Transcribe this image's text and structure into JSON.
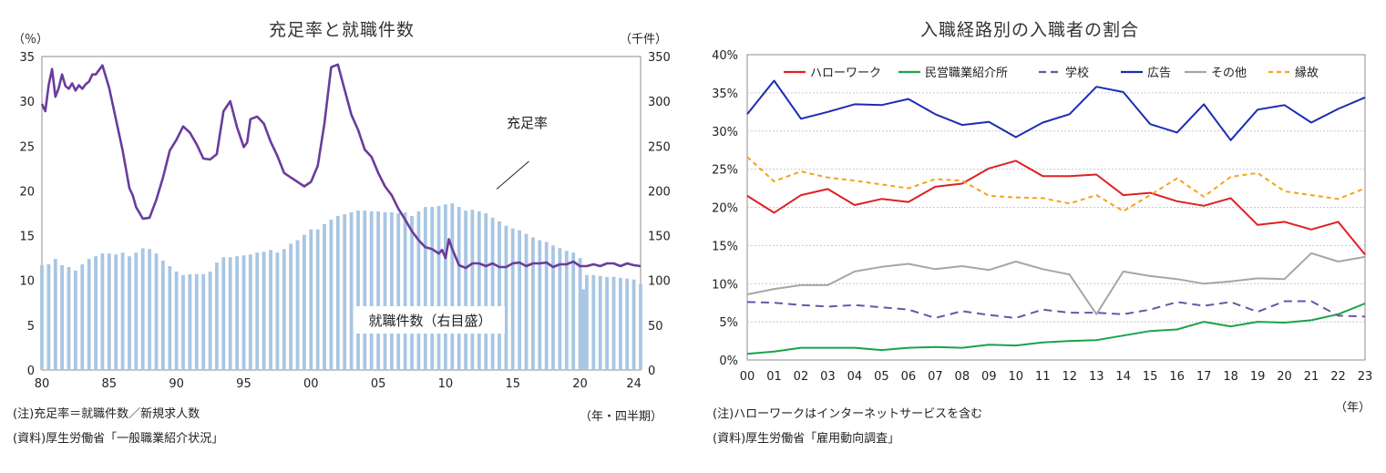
{
  "chart_data": [
    {
      "type": "bar+line",
      "title": "充足率と就職件数",
      "ylabel_left": "（％）",
      "ylabel_right": "（千件）",
      "xlabel": "（年・四半期）",
      "ylim_left": [
        0,
        35
      ],
      "ylim_right": [
        0,
        350
      ],
      "yticks_left": [
        "0",
        "5",
        "10",
        "15",
        "20",
        "25",
        "30",
        "35"
      ],
      "yticks_right": [
        "0",
        "50",
        "100",
        "150",
        "200",
        "250",
        "300",
        "350"
      ],
      "xticks": [
        "80",
        "85",
        "90",
        "95",
        "00",
        "05",
        "10",
        "15",
        "20",
        "24"
      ],
      "xrange": [
        1980.0,
        2024.5
      ],
      "annotations": {
        "line_label": "充足率",
        "bar_label": "就職件数（右目盛）"
      },
      "bar_series": {
        "name": "就職件数",
        "axis": "right",
        "x": [
          1980.0,
          1980.5,
          1981.0,
          1981.5,
          1982.0,
          1982.5,
          1983.0,
          1983.5,
          1984.0,
          1984.5,
          1985.0,
          1985.5,
          1986.0,
          1986.5,
          1987.0,
          1987.5,
          1988.0,
          1988.5,
          1989.0,
          1989.5,
          1990.0,
          1990.5,
          1991.0,
          1991.5,
          1992.0,
          1992.5,
          1993.0,
          1993.5,
          1994.0,
          1994.5,
          1995.0,
          1995.5,
          1996.0,
          1996.5,
          1997.0,
          1997.5,
          1998.0,
          1998.5,
          1999.0,
          1999.5,
          2000.0,
          2000.5,
          2001.0,
          2001.5,
          2002.0,
          2002.5,
          2003.0,
          2003.5,
          2004.0,
          2004.5,
          2005.0,
          2005.5,
          2006.0,
          2006.5,
          2007.0,
          2007.5,
          2008.0,
          2008.5,
          2009.0,
          2009.5,
          2010.0,
          2010.5,
          2011.0,
          2011.5,
          2012.0,
          2012.5,
          2013.0,
          2013.5,
          2014.0,
          2014.5,
          2015.0,
          2015.5,
          2016.0,
          2016.5,
          2017.0,
          2017.5,
          2018.0,
          2018.5,
          2019.0,
          2019.5,
          2020.0,
          2020.25,
          2020.5,
          2021.0,
          2021.5,
          2022.0,
          2022.5,
          2023.0,
          2023.5,
          2024.0,
          2024.5
        ],
        "values": [
          117,
          118,
          124,
          117,
          115,
          111,
          118,
          124,
          127,
          130,
          130,
          129,
          131,
          127,
          131,
          136,
          135,
          130,
          122,
          116,
          110,
          106,
          107,
          107,
          107,
          110,
          120,
          126,
          126,
          127,
          128,
          129,
          131,
          132,
          134,
          131,
          135,
          141,
          145,
          151,
          157,
          157,
          163,
          168,
          172,
          174,
          176,
          178,
          178,
          177,
          177,
          176,
          176,
          175,
          176,
          172,
          177,
          182,
          182,
          183,
          185,
          186,
          182,
          178,
          179,
          177,
          175,
          170,
          166,
          161,
          158,
          156,
          152,
          148,
          145,
          143,
          139,
          136,
          133,
          131,
          125,
          90,
          106,
          106,
          105,
          104,
          104,
          103,
          102,
          101,
          96
        ]
      },
      "line_series": {
        "name": "充足率",
        "axis": "left",
        "x": [
          1980.0,
          1980.25,
          1980.5,
          1980.75,
          1981.0,
          1981.25,
          1981.5,
          1981.75,
          1982.0,
          1982.25,
          1982.5,
          1982.75,
          1983.0,
          1983.25,
          1983.5,
          1983.75,
          1984.0,
          1984.5,
          1985.0,
          1985.5,
          1986.0,
          1986.25,
          1986.5,
          1986.75,
          1987.0,
          1987.5,
          1988.0,
          1988.5,
          1989.0,
          1989.5,
          1990.0,
          1990.5,
          1991.0,
          1991.5,
          1992.0,
          1992.5,
          1993.0,
          1993.5,
          1994.0,
          1994.5,
          1995.0,
          1995.25,
          1995.5,
          1996.0,
          1996.5,
          1997.0,
          1997.5,
          1998.0,
          1998.5,
          1999.0,
          1999.5,
          2000.0,
          2000.5,
          2001.0,
          2001.5,
          2002.0,
          2002.5,
          2003.0,
          2003.5,
          2004.0,
          2004.5,
          2005.0,
          2005.5,
          2006.0,
          2006.5,
          2007.0,
          2007.5,
          2008.0,
          2008.5,
          2009.0,
          2009.5,
          2009.75,
          2010.0,
          2010.25,
          2010.5,
          2011.0,
          2011.5,
          2012.0,
          2012.5,
          2013.0,
          2013.5,
          2014.0,
          2014.5,
          2015.0,
          2015.5,
          2016.0,
          2016.5,
          2017.0,
          2017.5,
          2018.0,
          2018.5,
          2019.0,
          2019.5,
          2020.0,
          2020.25,
          2020.5,
          2021.0,
          2021.5,
          2022.0,
          2022.5,
          2023.0,
          2023.5,
          2024.0,
          2024.5
        ],
        "values": [
          29.7,
          28.9,
          31.8,
          33.6,
          30.5,
          31.5,
          33.0,
          31.7,
          31.4,
          32.0,
          31.2,
          31.8,
          31.4,
          31.9,
          32.2,
          33.0,
          33.0,
          34.0,
          31.5,
          28.0,
          24.5,
          22.4,
          20.3,
          19.5,
          18.2,
          16.9,
          17.0,
          19.0,
          21.5,
          24.5,
          25.7,
          27.2,
          26.5,
          25.2,
          23.6,
          23.5,
          24.1,
          28.9,
          30.0,
          27.1,
          24.9,
          25.4,
          28.0,
          28.3,
          27.5,
          25.5,
          23.9,
          22.0,
          21.5,
          21.0,
          20.5,
          21.0,
          22.8,
          27.5,
          33.8,
          34.1,
          31.3,
          28.5,
          26.8,
          24.6,
          23.8,
          22.0,
          20.5,
          19.5,
          18.0,
          16.8,
          15.5,
          14.5,
          13.7,
          13.5,
          13.0,
          13.4,
          12.5,
          14.6,
          13.5,
          11.7,
          11.4,
          11.9,
          11.9,
          11.6,
          11.9,
          11.5,
          11.5,
          11.9,
          12.0,
          11.6,
          11.9,
          11.9,
          12.0,
          11.5,
          11.8,
          11.8,
          12.1,
          11.6,
          11.6,
          11.6,
          11.8,
          11.6,
          11.9,
          11.9,
          11.6,
          11.9,
          11.7,
          11.6
        ]
      }
    },
    {
      "type": "line",
      "title": "入職経路別の入職者の割合",
      "xlabel": "（年）",
      "ylim": [
        0,
        40
      ],
      "yticks": [
        "0%",
        "5%",
        "10%",
        "15%",
        "20%",
        "25%",
        "30%",
        "35%",
        "40%"
      ],
      "categories": [
        "00",
        "01",
        "02",
        "03",
        "04",
        "05",
        "06",
        "07",
        "08",
        "09",
        "10",
        "11",
        "12",
        "13",
        "14",
        "15",
        "16",
        "17",
        "18",
        "19",
        "20",
        "21",
        "22",
        "23"
      ],
      "grid": true,
      "legend_placement": "top",
      "series": [
        {
          "name": "ハローワーク",
          "color": "#e02020",
          "dash": "solid",
          "values": [
            21.5,
            19.3,
            21.6,
            22.4,
            20.3,
            21.1,
            20.7,
            22.7,
            23.1,
            25.1,
            26.1,
            24.1,
            24.1,
            24.3,
            21.6,
            21.9,
            20.8,
            20.2,
            21.2,
            17.7,
            18.1,
            17.1,
            18.1,
            13.8
          ]
        },
        {
          "name": "民営職業紹介所",
          "color": "#1aa34a",
          "dash": "solid",
          "values": [
            0.8,
            1.1,
            1.6,
            1.6,
            1.6,
            1.3,
            1.6,
            1.7,
            1.6,
            2.0,
            1.9,
            2.3,
            2.5,
            2.6,
            3.2,
            3.8,
            4.0,
            5.0,
            4.4,
            5.0,
            4.9,
            5.2,
            6.0,
            7.4
          ]
        },
        {
          "name": "学校",
          "color": "#6a55a8",
          "dash": "dashed",
          "values": [
            7.6,
            7.5,
            7.2,
            7.0,
            7.2,
            6.9,
            6.6,
            5.5,
            6.4,
            5.9,
            5.5,
            6.6,
            6.2,
            6.2,
            6.0,
            6.6,
            7.6,
            7.1,
            7.6,
            6.3,
            7.7,
            7.7,
            5.8,
            5.7
          ]
        },
        {
          "name": "広告",
          "color": "#1c2cb4",
          "dash": "solid",
          "values": [
            32.2,
            36.6,
            31.6,
            32.5,
            33.5,
            33.4,
            34.2,
            32.2,
            30.8,
            31.2,
            29.2,
            31.1,
            32.2,
            35.8,
            35.1,
            30.9,
            29.8,
            33.5,
            28.8,
            32.8,
            33.4,
            31.1,
            32.9,
            34.4
          ]
        },
        {
          "name": "その他",
          "color": "#a6a6a6",
          "dash": "solid",
          "values": [
            8.6,
            9.3,
            9.8,
            9.8,
            11.6,
            12.2,
            12.6,
            11.9,
            12.3,
            11.8,
            12.9,
            11.9,
            11.2,
            6.0,
            11.6,
            11.0,
            10.6,
            10.0,
            10.3,
            10.7,
            10.6,
            14.0,
            12.9,
            13.5
          ]
        },
        {
          "name": "縁故",
          "color": "#f5a31a",
          "dash": "dashed",
          "values": [
            26.6,
            23.4,
            24.7,
            23.9,
            23.5,
            23.0,
            22.5,
            23.7,
            23.5,
            21.5,
            21.3,
            21.2,
            20.5,
            21.6,
            19.5,
            21.6,
            23.8,
            21.4,
            24.0,
            24.5,
            22.1,
            21.6,
            21.1,
            22.5
          ]
        }
      ]
    }
  ],
  "notes_left": [
    "(注)充足率＝就職件数／新規求人数",
    "(資料)厚生労働省「一般職業紹介状況」"
  ],
  "notes_right": [
    "(注)ハローワークはインターネットサービスを含む",
    "(資料)厚生労働省「雇用動向調査」"
  ],
  "colors": {
    "bar": "#a9c6e2",
    "ratio_line": "#6a3c9c",
    "plot_bg": "#ffffff"
  }
}
